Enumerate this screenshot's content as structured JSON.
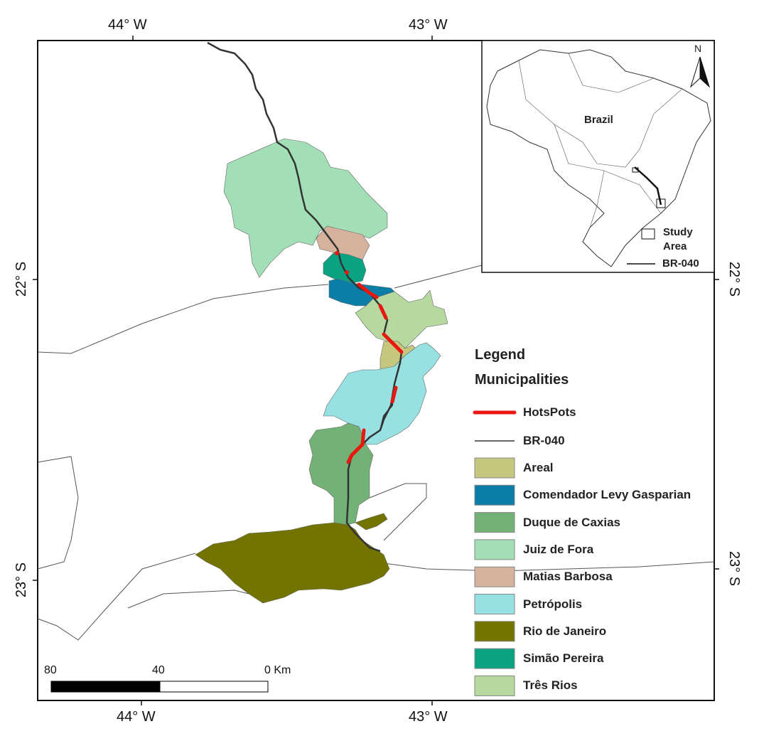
{
  "grid_labels": {
    "top": [
      "44° W",
      "43° W"
    ],
    "bottom": [
      "44° W",
      "43° W"
    ],
    "left": [
      "22° S",
      "23° S"
    ],
    "right": [
      "22° S",
      "23° S"
    ]
  },
  "legend": {
    "title": "Legend",
    "subtitle": "Municipalities",
    "lines": [
      {
        "label": "HotsPots",
        "color": "#e8170f"
      },
      {
        "label": "BR-040",
        "color": "#333333"
      }
    ],
    "municipalities": [
      {
        "label": "Areal",
        "color": "#c5c77e"
      },
      {
        "label": "Comendador Levy Gasparian",
        "color": "#0a7ea7"
      },
      {
        "label": "Duque de Caxias",
        "color": "#72b277"
      },
      {
        "label": "Juiz de Fora",
        "color": "#a3dfb6"
      },
      {
        "label": "Matias Barbosa",
        "color": "#d6b29d"
      },
      {
        "label": "Petrópolis",
        "color": "#97e1e3"
      },
      {
        "label": "Rio de Janeiro",
        "color": "#737300"
      },
      {
        "label": "Simão Pereira",
        "color": "#0aa382"
      },
      {
        "label": "Três Rios",
        "color": "#b6d9a0"
      }
    ]
  },
  "inset": {
    "country": "Brazil",
    "north": "N",
    "legend": [
      "Study Area",
      "BR-040"
    ]
  },
  "scale_bar": {
    "labels": [
      "80",
      "40",
      "0 Km"
    ]
  }
}
